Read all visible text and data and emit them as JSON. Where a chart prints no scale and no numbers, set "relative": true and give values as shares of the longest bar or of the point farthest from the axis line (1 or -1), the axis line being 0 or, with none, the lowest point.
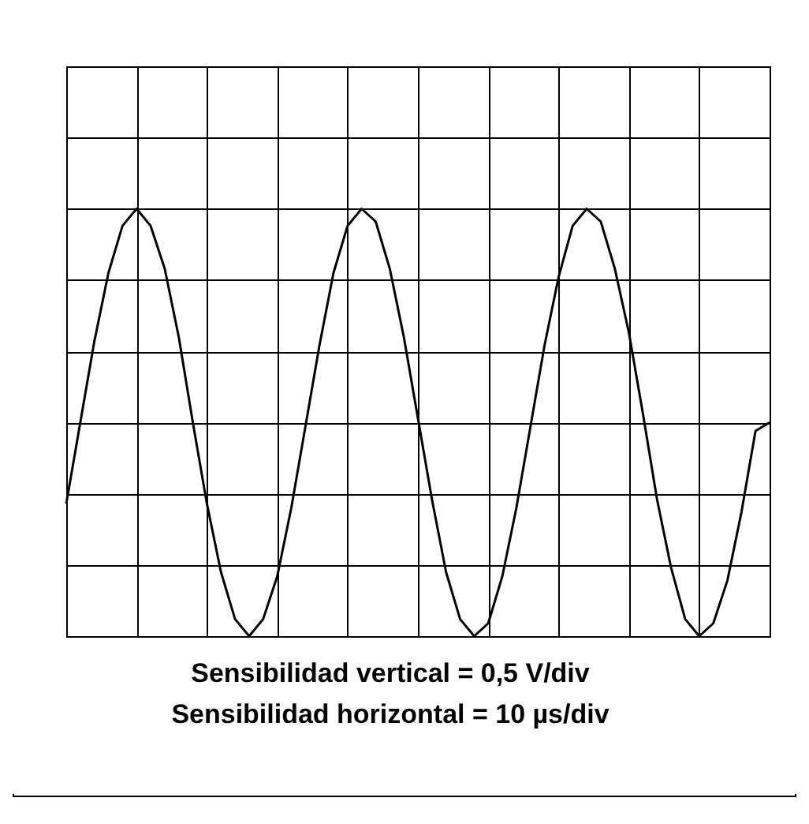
{
  "chart_data": {
    "type": "line",
    "relative": true,
    "grid": true,
    "color": "#000000",
    "categories": [
      null,
      null,
      null,
      null,
      null,
      null,
      null,
      null,
      null,
      null,
      null,
      null,
      null,
      null,
      null,
      null,
      null,
      null,
      null,
      null,
      null,
      null,
      null,
      null,
      null,
      null,
      null,
      null,
      null,
      null,
      null,
      null,
      null,
      null,
      null,
      null,
      null,
      null,
      null,
      null,
      null,
      null,
      null,
      null,
      null,
      null,
      null,
      null,
      null,
      null,
      null
    ],
    "values": [
      0.31,
      0.5,
      0.69,
      0.85,
      0.96,
      1.0,
      0.96,
      0.86,
      0.7,
      0.5,
      0.31,
      0.15,
      0.04,
      0.0,
      0.04,
      0.14,
      0.3,
      0.49,
      0.68,
      0.85,
      0.96,
      1.0,
      0.97,
      0.86,
      0.7,
      0.51,
      0.32,
      0.15,
      0.04,
      0.0,
      0.03,
      0.14,
      0.3,
      0.49,
      0.68,
      0.84,
      0.96,
      1.0,
      0.97,
      0.86,
      0.71,
      0.52,
      0.32,
      0.16,
      0.04,
      0.0,
      0.03,
      0.13,
      0.29,
      0.48,
      0.5
    ],
    "annotations": [
      "Sensibilidad vertical = 0,5 V/div",
      "Sensibilidad horizontal = 10 µs/div"
    ]
  }
}
